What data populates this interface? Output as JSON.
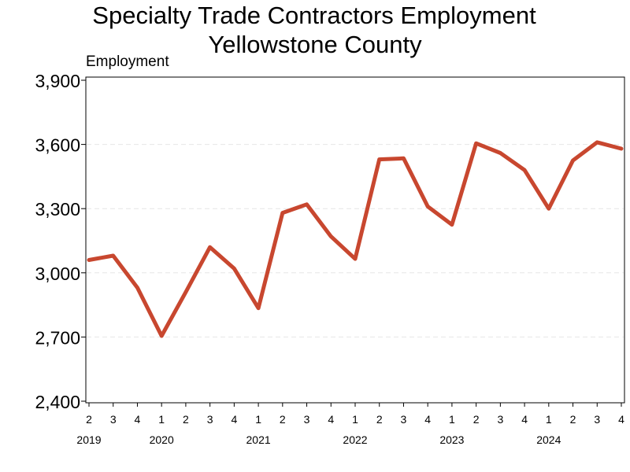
{
  "chart_data": {
    "type": "line",
    "title": "Specialty Trade Contractors Employment",
    "subtitle": "Yellowstone County",
    "ylabel": "Employment",
    "xlabel": "",
    "ylim": [
      2400,
      3900
    ],
    "yticks": [
      "2,400",
      "2,700",
      "3,000",
      "3,300",
      "3,600",
      "3,900"
    ],
    "ytick_values": [
      2400,
      2700,
      3000,
      3300,
      3600,
      3900
    ],
    "grid": true,
    "x": [
      {
        "quarter": "2",
        "year": "2019"
      },
      {
        "quarter": "3",
        "year": ""
      },
      {
        "quarter": "4",
        "year": ""
      },
      {
        "quarter": "1",
        "year": "2020"
      },
      {
        "quarter": "2",
        "year": ""
      },
      {
        "quarter": "3",
        "year": ""
      },
      {
        "quarter": "4",
        "year": ""
      },
      {
        "quarter": "1",
        "year": "2021"
      },
      {
        "quarter": "2",
        "year": ""
      },
      {
        "quarter": "3",
        "year": ""
      },
      {
        "quarter": "4",
        "year": ""
      },
      {
        "quarter": "1",
        "year": "2022"
      },
      {
        "quarter": "2",
        "year": ""
      },
      {
        "quarter": "3",
        "year": ""
      },
      {
        "quarter": "4",
        "year": ""
      },
      {
        "quarter": "1",
        "year": "2023"
      },
      {
        "quarter": "2",
        "year": ""
      },
      {
        "quarter": "3",
        "year": ""
      },
      {
        "quarter": "4",
        "year": ""
      },
      {
        "quarter": "1",
        "year": "2024"
      },
      {
        "quarter": "2",
        "year": ""
      },
      {
        "quarter": "3",
        "year": ""
      },
      {
        "quarter": "4",
        "year": ""
      }
    ],
    "series": [
      {
        "values": [
          3060,
          3080,
          2930,
          2705,
          2910,
          3120,
          3020,
          2835,
          3280,
          3320,
          3170,
          3065,
          3530,
          3535,
          3310,
          3225,
          3605,
          3560,
          3480,
          3300,
          3525,
          3610,
          3580
        ],
        "color": "#c8472f"
      }
    ]
  }
}
